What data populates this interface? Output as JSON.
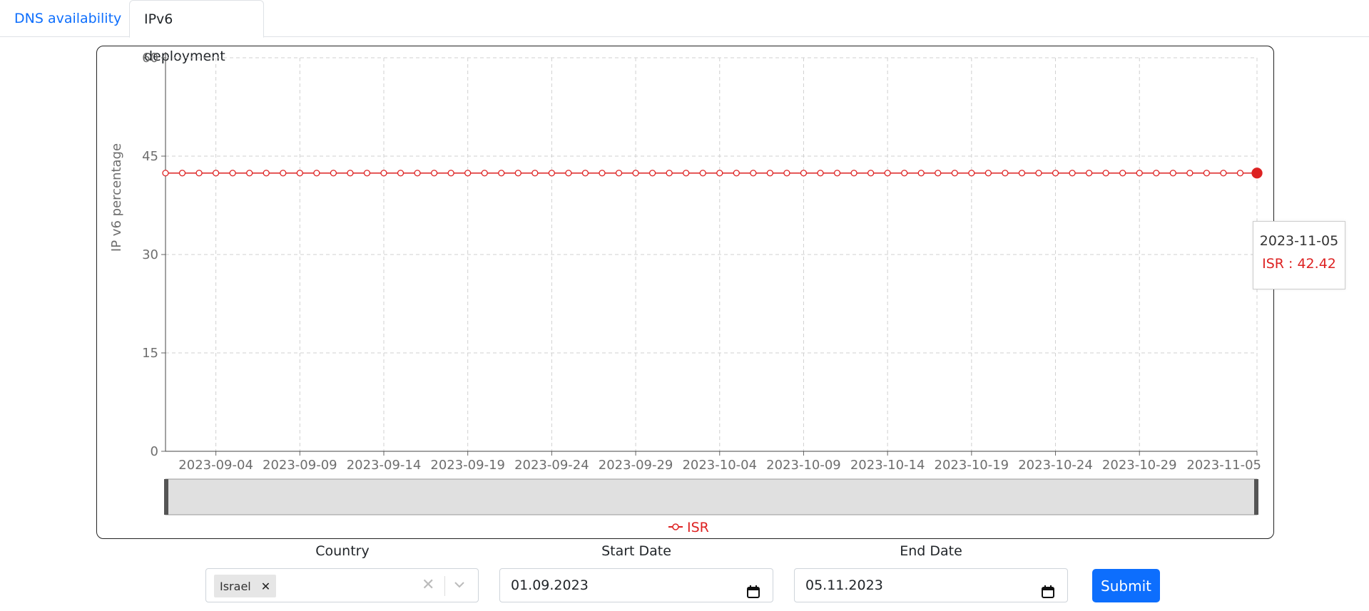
{
  "tabs": [
    {
      "label": "DNS availability",
      "active": false
    },
    {
      "label": "IPv6 deployment",
      "active": true
    }
  ],
  "chart_data": {
    "type": "line",
    "ylabel": "IP v6 percentage",
    "xlabel": "",
    "ylim": [
      0,
      60
    ],
    "yticks": [
      0,
      15,
      30,
      45,
      60
    ],
    "xlim": [
      "2023-09-01",
      "2023-11-05"
    ],
    "xticks": [
      "2023-09-04",
      "2023-09-09",
      "2023-09-14",
      "2023-09-19",
      "2023-09-24",
      "2023-09-29",
      "2023-10-04",
      "2023-10-09",
      "2023-10-14",
      "2023-10-19",
      "2023-10-24",
      "2023-10-29",
      "2023-11-05"
    ],
    "grid": true,
    "legend_position": "bottom-center",
    "color": "#dd2222",
    "series": [
      {
        "name": "ISR",
        "start": "2023-09-01",
        "end": "2023-11-05",
        "frequency": "daily",
        "value": 42.42
      }
    ],
    "tooltip": {
      "date": "2023-11-05",
      "label": "ISR : 42.42"
    }
  },
  "form": {
    "country_label": "Country",
    "country_selected": "Israel",
    "start_label": "Start Date",
    "start_value": "01.09.2023",
    "end_label": "End Date",
    "end_value": "05.11.2023",
    "submit_label": "Submit"
  }
}
